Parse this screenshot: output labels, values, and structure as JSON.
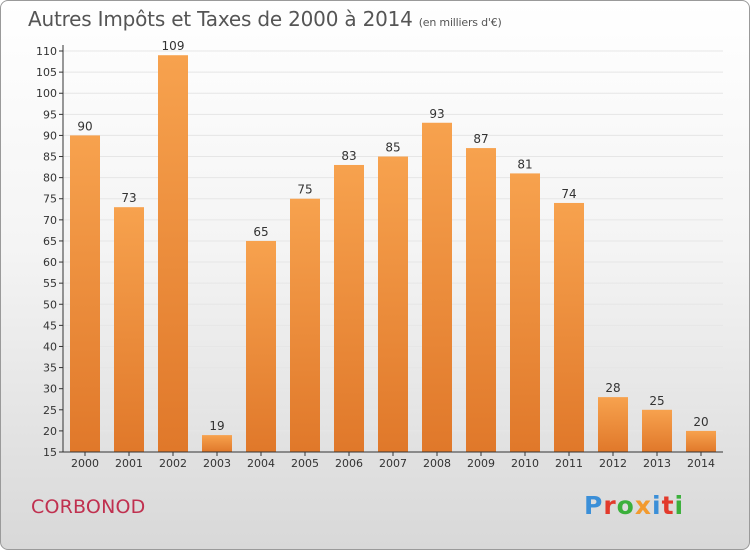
{
  "title": "Autres Impôts et Taxes de 2000 à 2014",
  "unit": "(en milliers d'€)",
  "commune": "CORBONOD",
  "logo": "Proxiti",
  "colors": {
    "bar_top": "#f7a24e",
    "bar_bottom": "#e0782a",
    "axis": "#333333",
    "grid": "#e6e6e6",
    "commune": "#c0304f",
    "logo": [
      "#3b8fd8",
      "#e23a2c",
      "#3bb03b",
      "#f29a2e",
      "#3b8fd8",
      "#e23a2c",
      "#3bb03b"
    ]
  },
  "chart_data": {
    "type": "bar",
    "categories": [
      "2000",
      "2001",
      "2002",
      "2003",
      "2004",
      "2005",
      "2006",
      "2007",
      "2008",
      "2009",
      "2010",
      "2011",
      "2012",
      "2013",
      "2014"
    ],
    "values": [
      90,
      73,
      109,
      19,
      65,
      75,
      83,
      85,
      93,
      87,
      81,
      74,
      28,
      25,
      20
    ],
    "title": "Autres Impôts et Taxes de 2000 à 2014",
    "subtitle": "(en milliers d'€)",
    "xlabel": "",
    "ylabel": "",
    "ylim": [
      15,
      110
    ],
    "yticks": [
      15,
      20,
      25,
      30,
      35,
      40,
      45,
      50,
      55,
      60,
      65,
      70,
      75,
      80,
      85,
      90,
      95,
      100,
      105,
      110
    ],
    "grid": true,
    "data_labels": true
  }
}
